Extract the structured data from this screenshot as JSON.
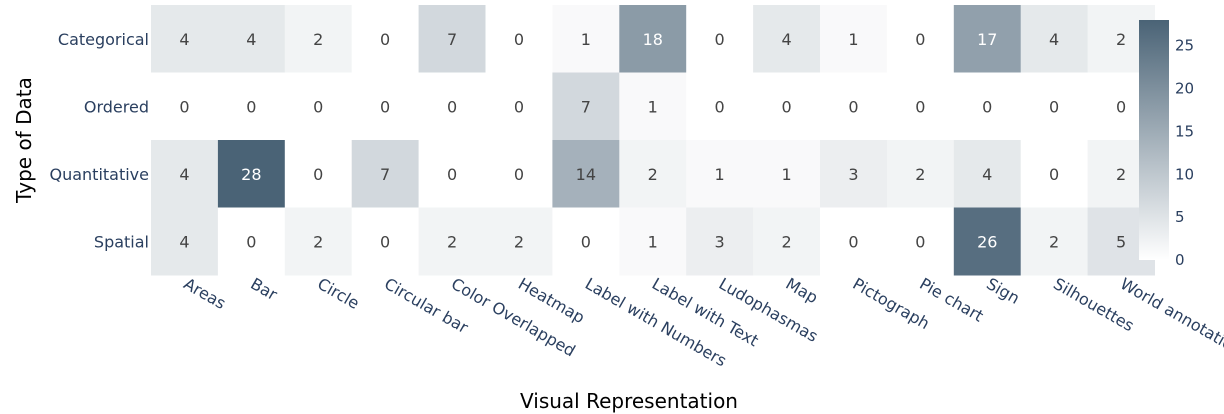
{
  "chart_data": {
    "type": "heatmap",
    "xlabel": "Visual Representation",
    "ylabel": "Type of Data",
    "x": [
      "Areas",
      "Bar",
      "Circle",
      "Circular bar",
      "Color Overlapped",
      "Heatmap",
      "Label with Numbers",
      "Label with Text",
      "Ludophasmas",
      "Map",
      "Pictograph",
      "Pie chart",
      "Sign",
      "Silhouettes",
      "World annotation"
    ],
    "y": [
      "Categorical",
      "Ordered",
      "Quantitative",
      "Spatial"
    ],
    "z": [
      [
        4,
        4,
        2,
        0,
        7,
        0,
        1,
        18,
        0,
        4,
        1,
        0,
        17,
        4,
        2
      ],
      [
        0,
        0,
        0,
        0,
        0,
        0,
        7,
        1,
        0,
        0,
        0,
        0,
        0,
        0,
        0
      ],
      [
        4,
        28,
        0,
        7,
        0,
        0,
        14,
        2,
        1,
        1,
        3,
        2,
        4,
        0,
        2
      ],
      [
        4,
        0,
        2,
        0,
        2,
        2,
        0,
        1,
        3,
        2,
        0,
        0,
        26,
        2,
        5
      ]
    ],
    "zlim": [
      0,
      28
    ],
    "colorbar_ticks": [
      0,
      5,
      10,
      15,
      20,
      25
    ],
    "colorscale": [
      "#ffffff",
      "#4a6376"
    ],
    "legend_position": "right",
    "grid": false
  }
}
